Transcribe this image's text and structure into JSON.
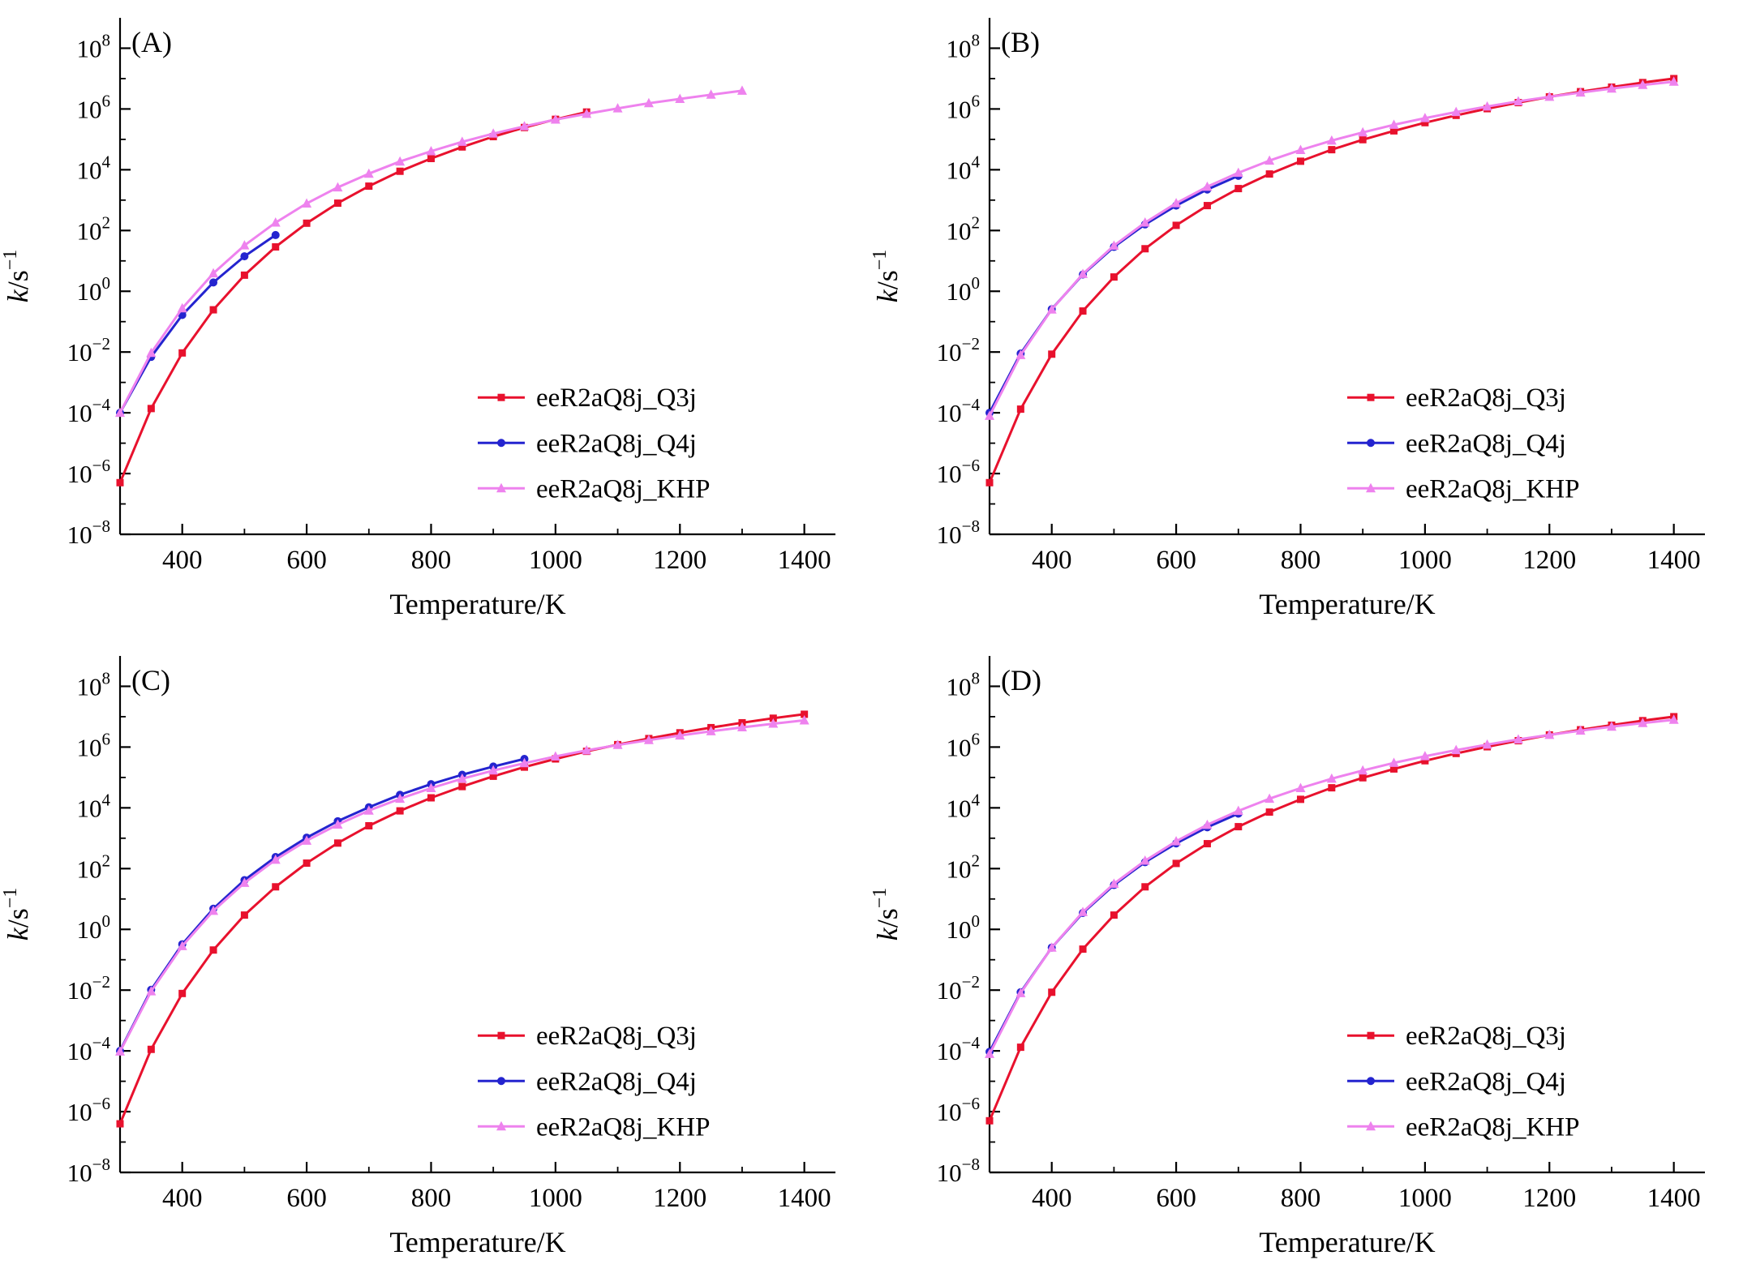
{
  "figure": {
    "background": "#ffffff",
    "panel_labels": [
      "(A)",
      "(B)",
      "(C)",
      "(D)"
    ]
  },
  "chart_data": [
    {
      "type": "line",
      "panel_label": "(A)",
      "xlabel": "Temperature/K",
      "ylabel": "k/s⁻¹",
      "ylabel_italic": "k",
      "ylabel_unit": "/s",
      "ylabel_sup": "−1",
      "x_range": [
        300,
        1450
      ],
      "y_log_exp_range": [
        -8,
        9
      ],
      "x_ticks_major": [
        400,
        600,
        800,
        1000,
        1200,
        1400
      ],
      "x_minor_step": 100,
      "y_ticks_major_exps": [
        -8,
        -6,
        -4,
        -2,
        0,
        2,
        4,
        6,
        8
      ],
      "grid": false,
      "legend_position": "lower right",
      "series": [
        {
          "name": "eeR2aQ8j_Q3j",
          "color": "#e8112d",
          "marker": "square",
          "T": [
            300,
            350,
            400,
            450,
            500,
            550,
            600,
            650,
            700,
            750,
            800,
            850,
            900,
            950,
            1000,
            1050
          ],
          "log10_k": [
            -6.3,
            -3.86,
            -2.03,
            -0.61,
            0.53,
            1.46,
            2.24,
            2.9,
            3.46,
            3.95,
            4.37,
            4.75,
            5.09,
            5.39,
            5.66,
            5.9
          ]
        },
        {
          "name": "eeR2aQ8j_Q4j",
          "color": "#2424cf",
          "marker": "circle",
          "T": [
            300,
            350,
            400,
            450,
            500,
            550
          ],
          "log10_k": [
            -4.0,
            -2.16,
            -0.78,
            0.29,
            1.15,
            1.85
          ]
        },
        {
          "name": "eeR2aQ8j_KHP",
          "color": "#ee82ee",
          "marker": "triangle",
          "T": [
            300,
            350,
            400,
            450,
            500,
            550,
            600,
            650,
            700,
            750,
            800,
            850,
            900,
            950,
            1000,
            1050,
            1100,
            1150,
            1200,
            1250,
            1300
          ],
          "log10_k": [
            -4.0,
            -2.03,
            -0.56,
            0.59,
            1.51,
            2.26,
            2.89,
            3.42,
            3.87,
            4.27,
            4.61,
            4.92,
            5.19,
            5.43,
            5.65,
            5.84,
            6.02,
            6.19,
            6.33,
            6.47,
            6.6
          ]
        }
      ]
    },
    {
      "type": "line",
      "panel_label": "(B)",
      "xlabel": "Temperature/K",
      "ylabel": "k/s⁻¹",
      "ylabel_italic": "k",
      "ylabel_unit": "/s",
      "ylabel_sup": "−1",
      "x_range": [
        300,
        1450
      ],
      "y_log_exp_range": [
        -8,
        9
      ],
      "x_ticks_major": [
        400,
        600,
        800,
        1000,
        1200,
        1400
      ],
      "x_minor_step": 100,
      "y_ticks_major_exps": [
        -8,
        -6,
        -4,
        -2,
        0,
        2,
        4,
        6,
        8
      ],
      "grid": false,
      "legend_position": "lower right",
      "series": [
        {
          "name": "eeR2aQ8j_Q3j",
          "color": "#e8112d",
          "marker": "square",
          "T": [
            300,
            350,
            400,
            450,
            500,
            550,
            600,
            650,
            700,
            750,
            800,
            850,
            900,
            950,
            1000,
            1050,
            1100,
            1150,
            1200,
            1250,
            1300,
            1350,
            1400
          ],
          "log10_k": [
            -6.3,
            -3.88,
            -2.07,
            -0.65,
            0.47,
            1.4,
            2.17,
            2.82,
            3.38,
            3.86,
            4.28,
            4.66,
            4.99,
            5.28,
            5.55,
            5.79,
            6.01,
            6.21,
            6.4,
            6.57,
            6.72,
            6.87,
            7.0
          ]
        },
        {
          "name": "eeR2aQ8j_Q4j",
          "color": "#2424cf",
          "marker": "circle",
          "T": [
            300,
            350,
            400,
            450,
            500,
            550,
            600,
            650,
            700
          ],
          "log10_k": [
            -4.0,
            -2.05,
            -0.59,
            0.55,
            1.46,
            2.2,
            2.82,
            3.35,
            3.8
          ]
        },
        {
          "name": "eeR2aQ8j_KHP",
          "color": "#ee82ee",
          "marker": "triangle",
          "T": [
            300,
            350,
            400,
            450,
            500,
            550,
            600,
            650,
            700,
            750,
            800,
            850,
            900,
            950,
            1000,
            1050,
            1100,
            1150,
            1200,
            1250,
            1300,
            1350,
            1400
          ],
          "log10_k": [
            -4.1,
            -2.1,
            -0.6,
            0.57,
            1.5,
            2.26,
            2.9,
            3.44,
            3.9,
            4.3,
            4.65,
            4.96,
            5.23,
            5.48,
            5.7,
            5.9,
            6.08,
            6.25,
            6.4,
            6.54,
            6.67,
            6.79,
            6.9
          ]
        }
      ]
    },
    {
      "type": "line",
      "panel_label": "(C)",
      "xlabel": "Temperature/K",
      "ylabel": "k/s⁻¹",
      "ylabel_italic": "k",
      "ylabel_unit": "/s",
      "ylabel_sup": "−1",
      "x_range": [
        300,
        1450
      ],
      "y_log_exp_range": [
        -8,
        9
      ],
      "x_ticks_major": [
        400,
        600,
        800,
        1000,
        1200,
        1400
      ],
      "x_minor_step": 100,
      "y_ticks_major_exps": [
        -8,
        -6,
        -4,
        -2,
        0,
        2,
        4,
        6,
        8
      ],
      "grid": false,
      "legend_position": "lower right",
      "series": [
        {
          "name": "eeR2aQ8j_Q3j",
          "color": "#e8112d",
          "marker": "square",
          "T": [
            300,
            350,
            400,
            450,
            500,
            550,
            600,
            650,
            700,
            750,
            800,
            850,
            900,
            950,
            1000,
            1050,
            1100,
            1150,
            1200,
            1250,
            1300,
            1350,
            1400
          ],
          "log10_k": [
            -6.4,
            -3.95,
            -2.11,
            -0.68,
            0.47,
            1.4,
            2.18,
            2.84,
            3.41,
            3.9,
            4.33,
            4.7,
            5.04,
            5.34,
            5.61,
            5.86,
            6.08,
            6.28,
            6.47,
            6.64,
            6.8,
            6.95,
            7.08
          ]
        },
        {
          "name": "eeR2aQ8j_Q4j",
          "color": "#2424cf",
          "marker": "circle",
          "T": [
            300,
            350,
            400,
            450,
            500,
            550,
            600,
            650,
            700,
            750,
            800,
            850,
            900,
            950
          ],
          "log10_k": [
            -4.0,
            -1.99,
            -0.49,
            0.68,
            1.62,
            2.38,
            3.02,
            3.56,
            4.02,
            4.43,
            4.78,
            5.09,
            5.36,
            5.61
          ]
        },
        {
          "name": "eeR2aQ8j_KHP",
          "color": "#ee82ee",
          "marker": "triangle",
          "T": [
            300,
            350,
            400,
            450,
            500,
            550,
            600,
            650,
            700,
            750,
            800,
            850,
            900,
            950,
            1000,
            1050,
            1100,
            1150,
            1200,
            1250,
            1300,
            1350,
            1400
          ],
          "log10_k": [
            -4.02,
            -2.04,
            -0.55,
            0.61,
            1.53,
            2.29,
            2.92,
            3.45,
            3.91,
            4.3,
            4.65,
            4.96,
            5.23,
            5.47,
            5.69,
            5.89,
            6.07,
            6.23,
            6.38,
            6.52,
            6.65,
            6.77,
            6.88
          ]
        }
      ]
    },
    {
      "type": "line",
      "panel_label": "(D)",
      "xlabel": "Temperature/K",
      "ylabel": "k/s⁻¹",
      "ylabel_italic": "k",
      "ylabel_unit": "/s",
      "ylabel_sup": "−1",
      "x_range": [
        300,
        1450
      ],
      "y_log_exp_range": [
        -8,
        9
      ],
      "x_ticks_major": [
        400,
        600,
        800,
        1000,
        1200,
        1400
      ],
      "x_minor_step": 100,
      "y_ticks_major_exps": [
        -8,
        -6,
        -4,
        -2,
        0,
        2,
        4,
        6,
        8
      ],
      "grid": false,
      "legend_position": "lower right",
      "series": [
        {
          "name": "eeR2aQ8j_Q3j",
          "color": "#e8112d",
          "marker": "square",
          "T": [
            300,
            350,
            400,
            450,
            500,
            550,
            600,
            650,
            700,
            750,
            800,
            850,
            900,
            950,
            1000,
            1050,
            1100,
            1150,
            1200,
            1250,
            1300,
            1350,
            1400
          ],
          "log10_k": [
            -6.3,
            -3.88,
            -2.07,
            -0.65,
            0.47,
            1.4,
            2.17,
            2.82,
            3.38,
            3.86,
            4.28,
            4.66,
            4.99,
            5.28,
            5.55,
            5.79,
            6.01,
            6.21,
            6.4,
            6.57,
            6.72,
            6.87,
            7.0
          ]
        },
        {
          "name": "eeR2aQ8j_Q4j",
          "color": "#2424cf",
          "marker": "circle",
          "T": [
            300,
            350,
            400,
            450,
            500,
            550,
            600,
            650,
            700
          ],
          "log10_k": [
            -4.03,
            -2.07,
            -0.6,
            0.54,
            1.46,
            2.21,
            2.83,
            3.36,
            3.81
          ]
        },
        {
          "name": "eeR2aQ8j_KHP",
          "color": "#ee82ee",
          "marker": "triangle",
          "T": [
            300,
            350,
            400,
            450,
            500,
            550,
            600,
            650,
            700,
            750,
            800,
            850,
            900,
            950,
            1000,
            1050,
            1100,
            1150,
            1200,
            1250,
            1300,
            1350,
            1400
          ],
          "log10_k": [
            -4.1,
            -2.1,
            -0.6,
            0.57,
            1.5,
            2.26,
            2.9,
            3.44,
            3.9,
            4.3,
            4.65,
            4.96,
            5.23,
            5.48,
            5.7,
            5.9,
            6.08,
            6.25,
            6.4,
            6.54,
            6.67,
            6.79,
            6.9
          ]
        }
      ]
    }
  ]
}
